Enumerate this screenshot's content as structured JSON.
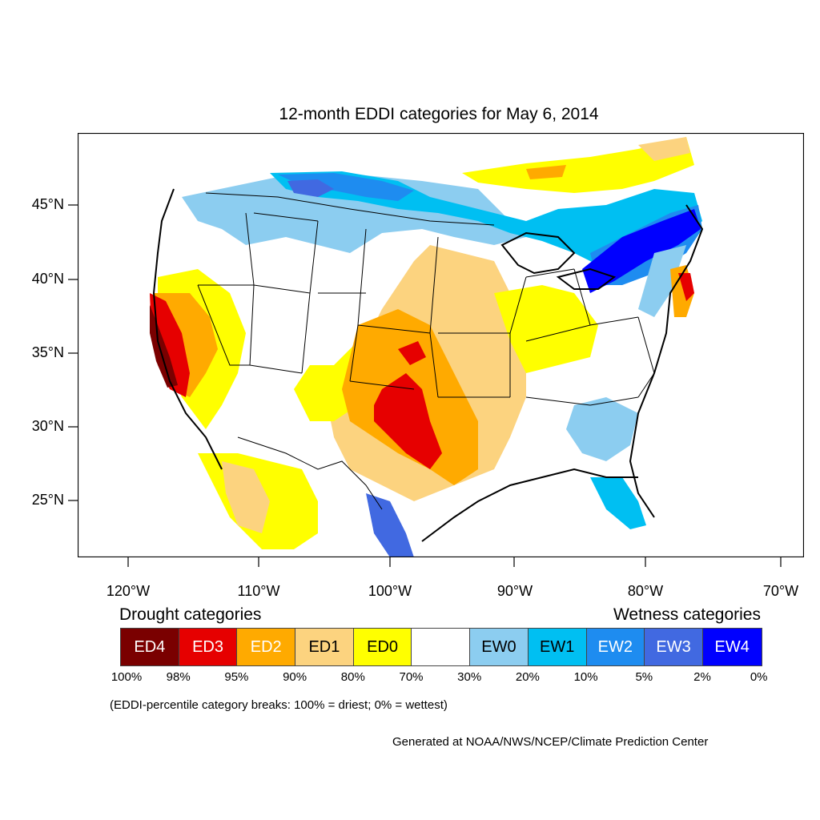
{
  "title": "12-month EDDI categories for May 6, 2014",
  "lat_labels": [
    "45°N",
    "40°N",
    "35°N",
    "30°N",
    "25°N"
  ],
  "lon_labels": [
    "120°W",
    "110°W",
    "100°W",
    "90°W",
    "80°W",
    "70°W"
  ],
  "legend": {
    "drought_heading": "Drought categories",
    "wetness_heading": "Wetness categories",
    "categories": [
      {
        "label": "ED4",
        "color": "#7a0000",
        "text_color": "#ffffff"
      },
      {
        "label": "ED3",
        "color": "#e60000",
        "text_color": "#ffffff"
      },
      {
        "label": "ED2",
        "color": "#ffaa00",
        "text_color": "#ffffff"
      },
      {
        "label": "ED1",
        "color": "#fcd37f",
        "text_color": "#000000"
      },
      {
        "label": "ED0",
        "color": "#ffff00",
        "text_color": "#000000"
      },
      {
        "label": "",
        "color": "#ffffff",
        "text_color": "#000000"
      },
      {
        "label": "EW0",
        "color": "#8ccdf0",
        "text_color": "#000000"
      },
      {
        "label": "EW1",
        "color": "#00bff2",
        "text_color": "#000000"
      },
      {
        "label": "EW2",
        "color": "#1e8cf0",
        "text_color": "#ffffff"
      },
      {
        "label": "EW3",
        "color": "#4169e1",
        "text_color": "#ffffff"
      },
      {
        "label": "EW4",
        "color": "#0000ff",
        "text_color": "#ffffff"
      }
    ],
    "breaks": [
      "100%",
      "98%",
      "95%",
      "90%",
      "80%",
      "70%",
      "30%",
      "20%",
      "10%",
      "5%",
      "2%",
      "0%"
    ]
  },
  "note": "(EDDI-percentile category breaks: 100% = driest; 0% = wettest)",
  "credit": "Generated at NOAA/NWS/NCEP/Climate Prediction Center"
}
